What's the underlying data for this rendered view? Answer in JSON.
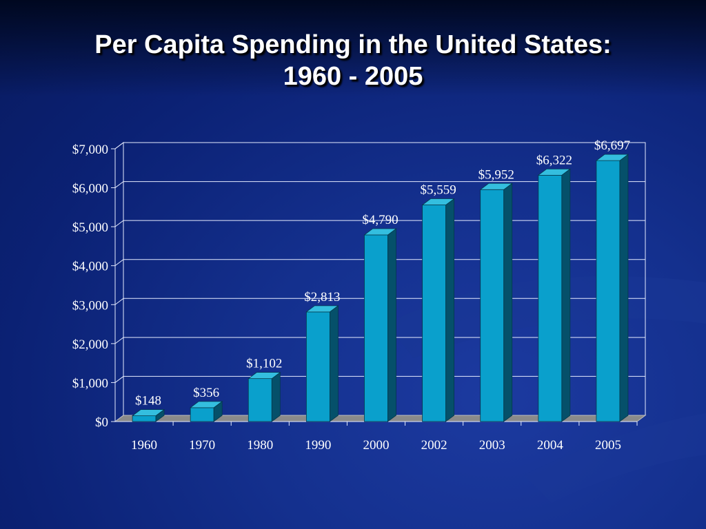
{
  "slide": {
    "title_line1": "Per Capita Spending in the United States:",
    "title_line2": "1960 - 2005"
  },
  "colors": {
    "bar_front": "#0aa0cc",
    "bar_side": "#05506a",
    "bar_top": "#34bedf",
    "floor": "#8a8a8a",
    "grid": "#e6ecff",
    "text": "#ffffff"
  },
  "chart_data": {
    "type": "bar",
    "title": "Per Capita Spending in the United States: 1960 - 2005",
    "categories": [
      "1960",
      "1970",
      "1980",
      "1990",
      "2000",
      "2002",
      "2003",
      "2004",
      "2005"
    ],
    "values": [
      148,
      356,
      1102,
      2813,
      4790,
      5559,
      5952,
      6322,
      6697
    ],
    "data_labels": [
      "$148",
      "$356",
      "$1,102",
      "$2,813",
      "$4,790",
      "$5,559",
      "$5,952",
      "$6,322",
      "$6,697"
    ],
    "ylim": [
      0,
      7000
    ],
    "yticks": [
      0,
      1000,
      2000,
      3000,
      4000,
      5000,
      6000,
      7000
    ],
    "ytick_labels": [
      "$0",
      "$1,000",
      "$2,000",
      "$3,000",
      "$4,000",
      "$5,000",
      "$6,000",
      "$7,000"
    ],
    "xlabel": "",
    "ylabel": "",
    "grid": true,
    "legend": "none",
    "style": "3d-column"
  }
}
